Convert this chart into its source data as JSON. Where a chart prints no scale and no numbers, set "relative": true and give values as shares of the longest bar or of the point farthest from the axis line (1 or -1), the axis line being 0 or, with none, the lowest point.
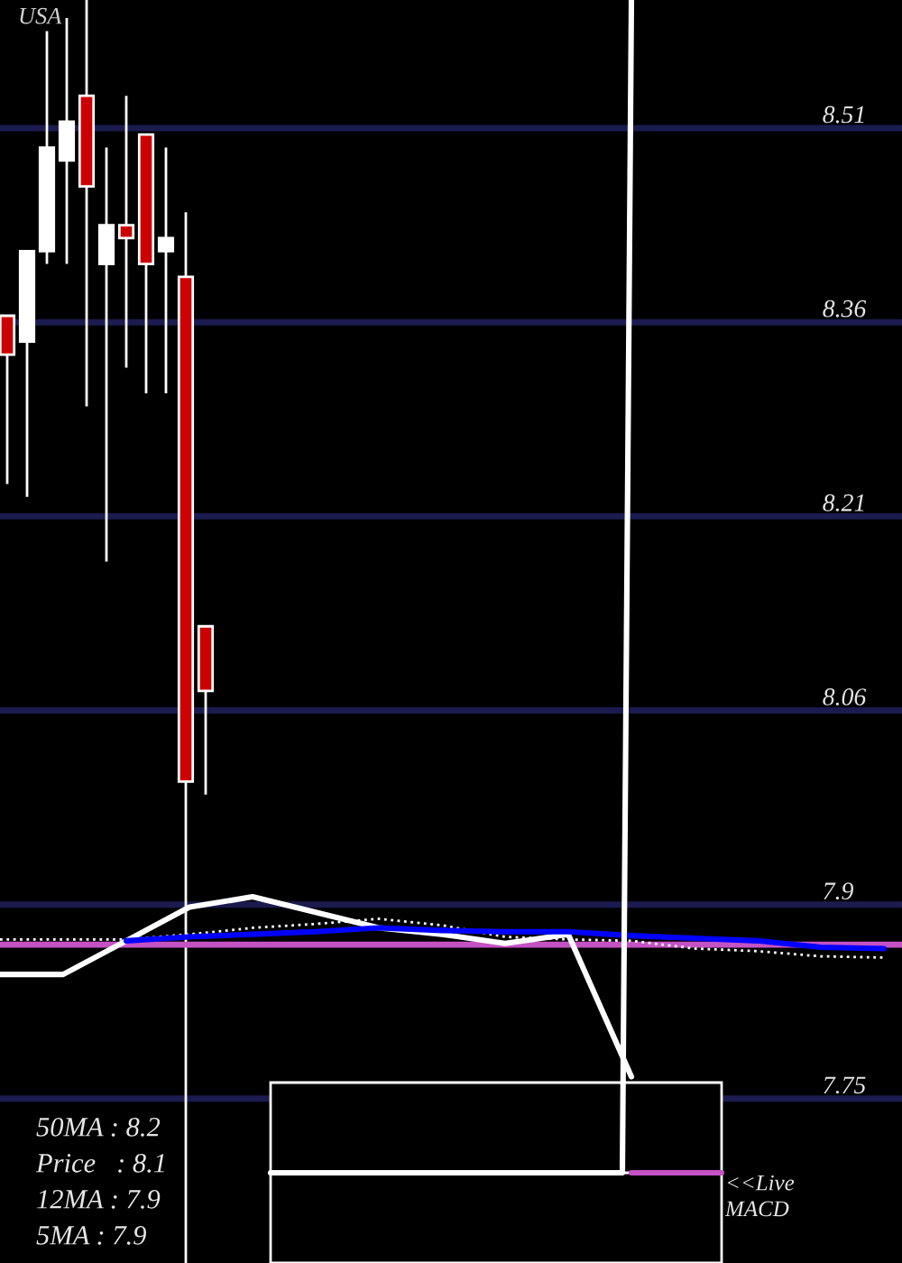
{
  "chart_data": [
    {
      "type": "candlestick",
      "title": "USA",
      "categories": [
        null,
        null,
        null,
        null,
        null,
        null,
        null,
        null,
        null,
        null,
        null,
        null,
        null,
        null,
        null,
        null,
        null,
        null,
        null,
        null,
        null,
        null,
        null,
        null,
        null,
        null,
        null,
        null,
        null,
        null,
        null,
        null,
        null,
        null,
        null,
        null,
        null,
        null,
        null,
        null,
        null,
        null,
        null,
        null,
        null,
        null
      ],
      "ohlc": [
        [
          8.36,
          8.36,
          8.23,
          8.33
        ],
        [
          8.34,
          8.41,
          8.22,
          8.41
        ],
        [
          8.41,
          8.58,
          8.4,
          8.49
        ],
        [
          8.48,
          8.59,
          8.4,
          8.51
        ],
        [
          8.53,
          8.604,
          8.29,
          8.46
        ],
        [
          8.4,
          8.49,
          8.17,
          8.43
        ],
        [
          8.43,
          8.53,
          8.32,
          8.42
        ],
        [
          8.5,
          8.5,
          8.3,
          8.4
        ],
        [
          8.41,
          8.49,
          8.3,
          8.42
        ],
        [
          8.39,
          8.44,
          7.628,
          8.0
        ],
        [
          8.12,
          8.12,
          7.99,
          8.07
        ],
        null,
        null,
        null,
        null,
        null,
        null,
        null,
        null,
        null,
        null,
        null,
        null,
        null,
        null,
        null,
        null,
        null,
        null,
        null,
        null,
        null,
        null,
        null,
        null,
        null,
        null,
        null,
        null,
        null,
        null,
        null,
        null,
        null,
        null,
        null
      ],
      "colors": [
        "#cc0000",
        "#ffffff",
        "#ffffff",
        "#ffffff",
        "#cc0000",
        "#ffffff",
        "#cc0000",
        "#cc0000",
        "#ffffff",
        "#cc0000",
        "#cc0000",
        null,
        null,
        null,
        null,
        null,
        null,
        null,
        null,
        null,
        null,
        null,
        null,
        null,
        null,
        null,
        null,
        null,
        null,
        null,
        null,
        null,
        null,
        null,
        null,
        null,
        null,
        null,
        null,
        null,
        null,
        null,
        null,
        null,
        null,
        null
      ],
      "ylim": [
        7.628,
        8.604
      ],
      "yticks": [
        {
          "value": 8.505,
          "label": "8.51"
        },
        {
          "value": 8.355,
          "label": "8.36"
        },
        {
          "value": 8.205,
          "label": "8.21"
        },
        {
          "value": 8.055,
          "label": "8.06"
        },
        {
          "value": 7.905,
          "label": "7.9"
        },
        {
          "value": 7.755,
          "label": "7.75"
        }
      ],
      "grid": "y"
    },
    {
      "type": "line",
      "categories": [
        null,
        null,
        null,
        null,
        null,
        null,
        null,
        null,
        null,
        null,
        null,
        null,
        null,
        null,
        null
      ],
      "series": [
        {
          "color": "#ffffff",
          "values": [
            7.851,
            7.851,
            7.877,
            7.903,
            7.911,
            7.899,
            7.887,
            7.882,
            7.875,
            7.882,
            7.772,
            null,
            null,
            null,
            null
          ]
        },
        {
          "color": "#ffffff",
          "line_style": "dotted",
          "values": [
            7.878,
            7.878,
            7.878,
            7.882,
            7.887,
            7.89,
            7.894,
            7.889,
            7.88,
            7.878,
            7.877,
            7.871,
            7.869,
            7.865,
            7.864
          ]
        },
        {
          "color": "#0000ff",
          "values": [
            null,
            null,
            7.877,
            7.88,
            7.882,
            7.884,
            7.887,
            7.885,
            7.884,
            7.884,
            7.881,
            7.879,
            7.877,
            7.872,
            7.871
          ]
        }
      ],
      "ref_lines": [
        {
          "axis": "y",
          "value": 7.874,
          "color": "#c452c4"
        }
      ],
      "ylim": [
        7.628,
        8.604
      ],
      "annotations": [
        "50MA : 8.2",
        "Price   : 8.1",
        "12MA : 7.9",
        "5MA : 7.9"
      ]
    },
    {
      "type": "line",
      "relative": true,
      "categories": [
        null,
        null,
        null,
        null,
        null,
        null,
        null,
        null,
        null,
        null,
        null,
        null,
        null,
        null,
        null,
        null,
        null,
        null,
        null,
        null,
        null,
        null,
        null,
        null,
        null,
        null,
        null,
        null,
        null,
        null,
        null,
        null,
        null,
        null,
        null,
        null,
        null,
        null,
        null,
        null,
        null,
        null,
        null,
        null,
        null,
        null,
        null,
        null,
        null,
        null,
        null
      ],
      "series": [
        {
          "color": "#ffffff",
          "values": [
            0,
            0,
            0,
            0,
            0,
            0,
            0,
            0,
            0,
            0,
            0,
            0,
            0,
            0,
            0,
            0,
            0,
            0,
            0,
            0,
            0,
            0,
            0,
            0,
            0,
            0,
            0,
            0,
            0,
            0,
            0,
            0,
            0,
            0,
            0,
            0,
            0,
            0,
            0,
            0,
            1,
            null,
            null,
            null,
            null,
            null,
            null,
            null,
            null,
            null,
            null
          ]
        },
        {
          "color": "#c452c4",
          "values": [
            null,
            null,
            null,
            null,
            null,
            null,
            null,
            null,
            null,
            null,
            null,
            null,
            null,
            null,
            null,
            null,
            null,
            null,
            null,
            null,
            null,
            null,
            null,
            null,
            null,
            null,
            null,
            null,
            null,
            null,
            null,
            null,
            null,
            null,
            null,
            null,
            null,
            null,
            null,
            null,
            0,
            0,
            0,
            0,
            0,
            0,
            0,
            0,
            0,
            0,
            0
          ]
        }
      ],
      "annotations": [
        "<<Live\nMACD"
      ]
    }
  ]
}
